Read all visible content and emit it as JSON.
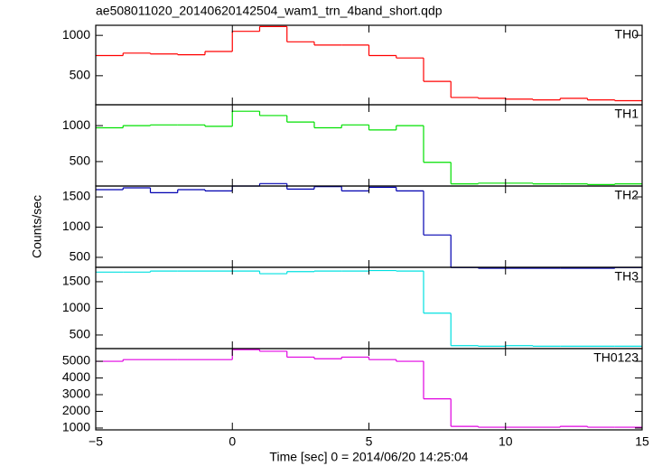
{
  "chart_data": [
    {
      "type": "histogram",
      "title": "ae508011020_20140620142504_wam1_trn_4band_short.qdp",
      "name": "TH0",
      "color": "#ff0000",
      "bins": [
        -5,
        -4,
        -3,
        -2,
        -1,
        0,
        1,
        2,
        3,
        4,
        5,
        6,
        7,
        8,
        9,
        10,
        11,
        12,
        13,
        14,
        15
      ],
      "values": [
        750,
        780,
        770,
        760,
        800,
        1050,
        1110,
        920,
        880,
        880,
        750,
        720,
        430,
        230,
        220,
        210,
        200,
        220,
        200,
        190
      ],
      "ylim": [
        140,
        1125
      ],
      "yticks": [
        500,
        1000
      ]
    },
    {
      "type": "histogram",
      "name": "TH1",
      "color": "#00e000",
      "bins": [
        -5,
        -4,
        -3,
        -2,
        -1,
        0,
        1,
        2,
        3,
        4,
        5,
        6,
        7,
        8,
        9,
        10,
        11,
        12,
        13,
        14,
        15
      ],
      "values": [
        970,
        1000,
        1010,
        1010,
        990,
        1200,
        1140,
        1050,
        970,
        1010,
        940,
        1000,
        490,
        190,
        200,
        200,
        190,
        190,
        180,
        190
      ],
      "ylim": [
        160,
        1290
      ],
      "yticks": [
        500,
        1000
      ]
    },
    {
      "type": "histogram",
      "name": "TH2",
      "color": "#0000b0",
      "ylabel": "Counts/sec",
      "bins": [
        -5,
        -4,
        -3,
        -2,
        -1,
        0,
        1,
        2,
        3,
        4,
        5,
        6,
        7,
        8,
        9,
        10,
        11,
        12,
        13,
        14,
        15
      ],
      "values": [
        1620,
        1650,
        1570,
        1620,
        1600,
        1680,
        1720,
        1630,
        1670,
        1600,
        1660,
        1600,
        870,
        330,
        320,
        320,
        320,
        320,
        320,
        330
      ],
      "ylim": [
        335,
        1680
      ],
      "yticks": [
        500,
        1000,
        1500
      ]
    },
    {
      "type": "histogram",
      "name": "TH3",
      "color": "#00e0e0",
      "bins": [
        -5,
        -4,
        -3,
        -2,
        -1,
        0,
        1,
        2,
        3,
        4,
        5,
        6,
        7,
        8,
        9,
        10,
        11,
        12,
        13,
        14,
        15
      ],
      "values": [
        1680,
        1680,
        1700,
        1700,
        1700,
        1700,
        1650,
        1690,
        1700,
        1700,
        1710,
        1700,
        910,
        300,
        290,
        300,
        290,
        290,
        290,
        290
      ],
      "ylim": [
        245,
        1770
      ],
      "yticks": [
        500,
        1000,
        1500
      ]
    },
    {
      "type": "histogram",
      "name": "TH0123",
      "color": "#e000e0",
      "xlabel": "Time [sec] 0 = 2014/06/20 14:25:04",
      "bins": [
        -5,
        -4,
        -3,
        -2,
        -1,
        0,
        1,
        2,
        3,
        4,
        5,
        6,
        7,
        8,
        9,
        10,
        11,
        12,
        13,
        14,
        15
      ],
      "values": [
        5000,
        5100,
        5100,
        5100,
        5100,
        5700,
        5600,
        5250,
        5150,
        5250,
        5100,
        5000,
        2750,
        1100,
        1050,
        1050,
        1050,
        1100,
        1050,
        1050
      ],
      "ylim": [
        890,
        5760
      ],
      "yticks": [
        1000,
        2000,
        3000,
        4000,
        5000
      ],
      "xlim": [
        -5,
        15
      ],
      "xticks": [
        {
          "value": -5,
          "label": "−5"
        },
        0,
        5,
        10,
        15
      ]
    }
  ]
}
